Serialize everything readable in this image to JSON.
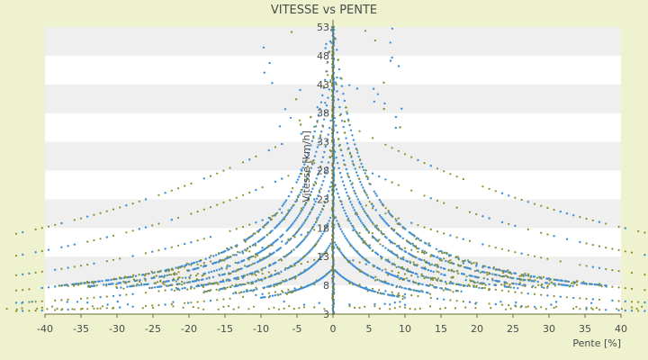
{
  "chart_data": {
    "type": "scatter",
    "title": "VITESSE vs PENTE",
    "xlabel": "Pente [%]",
    "ylabel": "Vitesse [km/h]",
    "xlim": [
      -40,
      40
    ],
    "ylim": [
      3,
      53
    ],
    "x_ticks": [
      -40,
      -35,
      -30,
      -25,
      -20,
      -15,
      -10,
      -5,
      0,
      5,
      10,
      15,
      20,
      25,
      30,
      35,
      40
    ],
    "y_ticks": [
      3,
      8,
      13,
      18,
      23,
      28,
      33,
      38,
      43,
      48,
      53
    ],
    "grid": "horizontal alternating bands",
    "legend": "none",
    "colors": {
      "background": "#eef2cf",
      "band_light": "#ffffff",
      "band_dark": "#efefef",
      "axis": "#6b6b3a",
      "series_blue": "#3f8fd6",
      "series_olive": "#8a8f2a"
    },
    "series": [
      {
        "color": "#3f8fd6",
        "curves_k": [
          8,
          13,
          18,
          24,
          30,
          36,
          44,
          52
        ],
        "x_range": [
          -40,
          40
        ],
        "y_range": [
          3,
          53
        ]
      },
      {
        "color": "#8a8f2a",
        "curves_k": [
          8,
          13,
          18,
          24,
          30,
          36,
          44,
          52
        ],
        "x_range": [
          -40,
          40
        ],
        "y_range": [
          3,
          53
        ]
      }
    ]
  }
}
